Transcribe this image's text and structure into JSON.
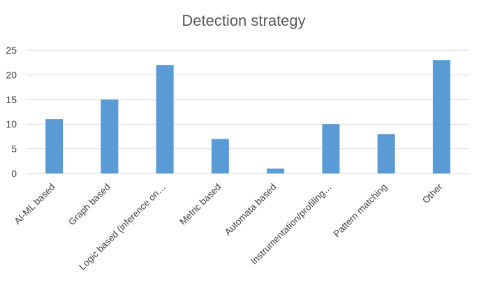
{
  "chart_data": {
    "type": "bar",
    "title": "Detection strategy",
    "xlabel": "",
    "ylabel": "",
    "categories": [
      "AI-ML based",
      "Graph based",
      "Logic based (inference on…",
      "Metric based",
      "Automata based",
      "Instrumentation/profiling…",
      "Pattern matching",
      "Other"
    ],
    "values": [
      11,
      15,
      22,
      7,
      1,
      10,
      8,
      23
    ],
    "ylim": [
      0,
      25
    ],
    "yticks": [
      "0",
      "5",
      "10",
      "15",
      "20",
      "25"
    ],
    "grid": true,
    "bar_color": "#5b9bd5"
  }
}
